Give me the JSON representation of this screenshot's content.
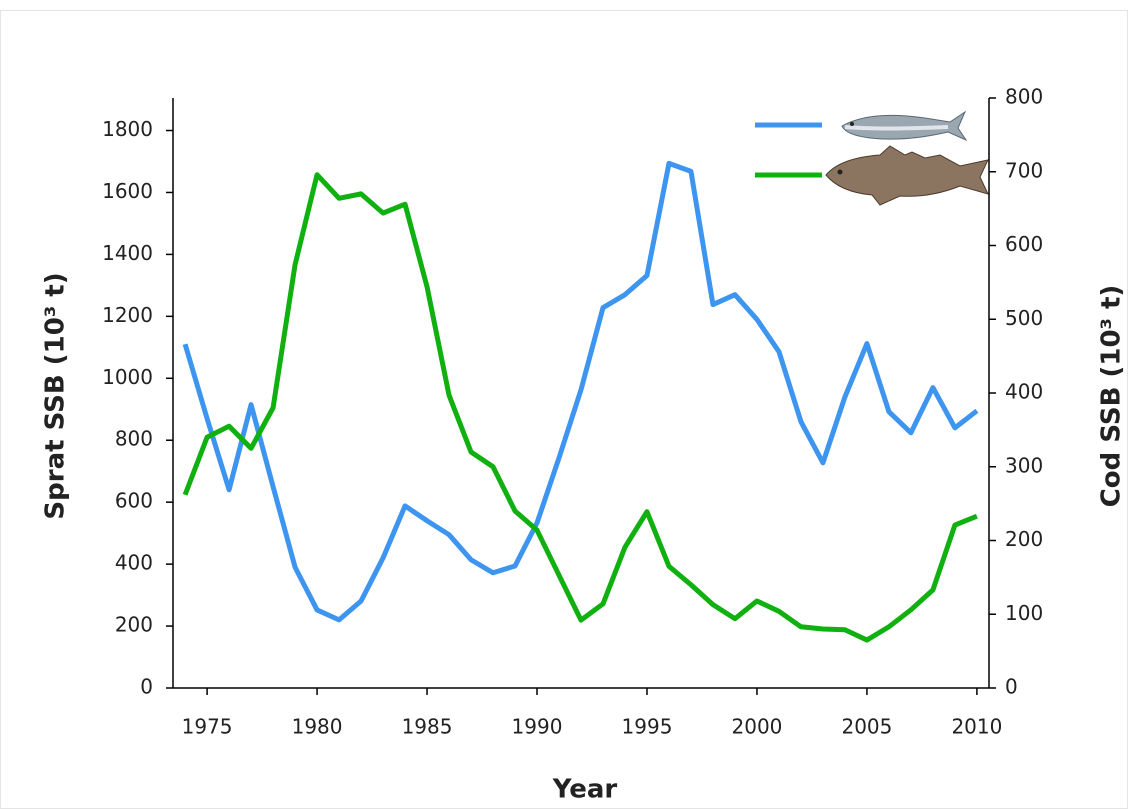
{
  "chart_data": {
    "type": "line",
    "x_label": "Year",
    "y_label": "Sprat SSB (10³ t)",
    "y2_label": "Cod SSB (10³ t)",
    "x": [
      1974,
      1975,
      1976,
      1977,
      1978,
      1979,
      1980,
      1981,
      1982,
      1983,
      1984,
      1985,
      1986,
      1987,
      1988,
      1989,
      1990,
      1991,
      1992,
      1993,
      1994,
      1995,
      1996,
      1997,
      1998,
      1999,
      2000,
      2001,
      2002,
      2003,
      2004,
      2005,
      2006,
      2007,
      2008,
      2009,
      2010
    ],
    "series": [
      {
        "color": "#3d95f0",
        "axis": "y",
        "values": [
          1110,
          870,
          640,
          915,
          650,
          390,
          252,
          220,
          281,
          420,
          588,
          540,
          495,
          414,
          372,
          394,
          533,
          743,
          963,
          1228,
          1270,
          1332,
          1694,
          1668,
          1238,
          1270,
          1190,
          1086,
          860,
          727,
          940,
          1112,
          892,
          824,
          970,
          840,
          895
        ]
      },
      {
        "color": "#10b010",
        "axis": "y2",
        "values": [
          262,
          340,
          355,
          325,
          380,
          574,
          696,
          664,
          670,
          644,
          656,
          544,
          397,
          320,
          300,
          240,
          214,
          153,
          92,
          114,
          191,
          239,
          165,
          140,
          113,
          94,
          118,
          104,
          83,
          80,
          79,
          65,
          83,
          106,
          133,
          221,
          233
        ]
      }
    ],
    "xlim": [
      1973.45,
      2010.55
    ],
    "xticks": [
      1975,
      1980,
      1985,
      1990,
      1995,
      2000,
      2005,
      2010
    ],
    "ylim": [
      0,
      1905
    ],
    "yticks": [
      0,
      200,
      400,
      600,
      800,
      1000,
      1200,
      1400,
      1600,
      1800
    ],
    "y2lim": [
      0,
      800
    ],
    "y2ticks": [
      0,
      100,
      200,
      300,
      400,
      500,
      600,
      700,
      800
    ]
  }
}
